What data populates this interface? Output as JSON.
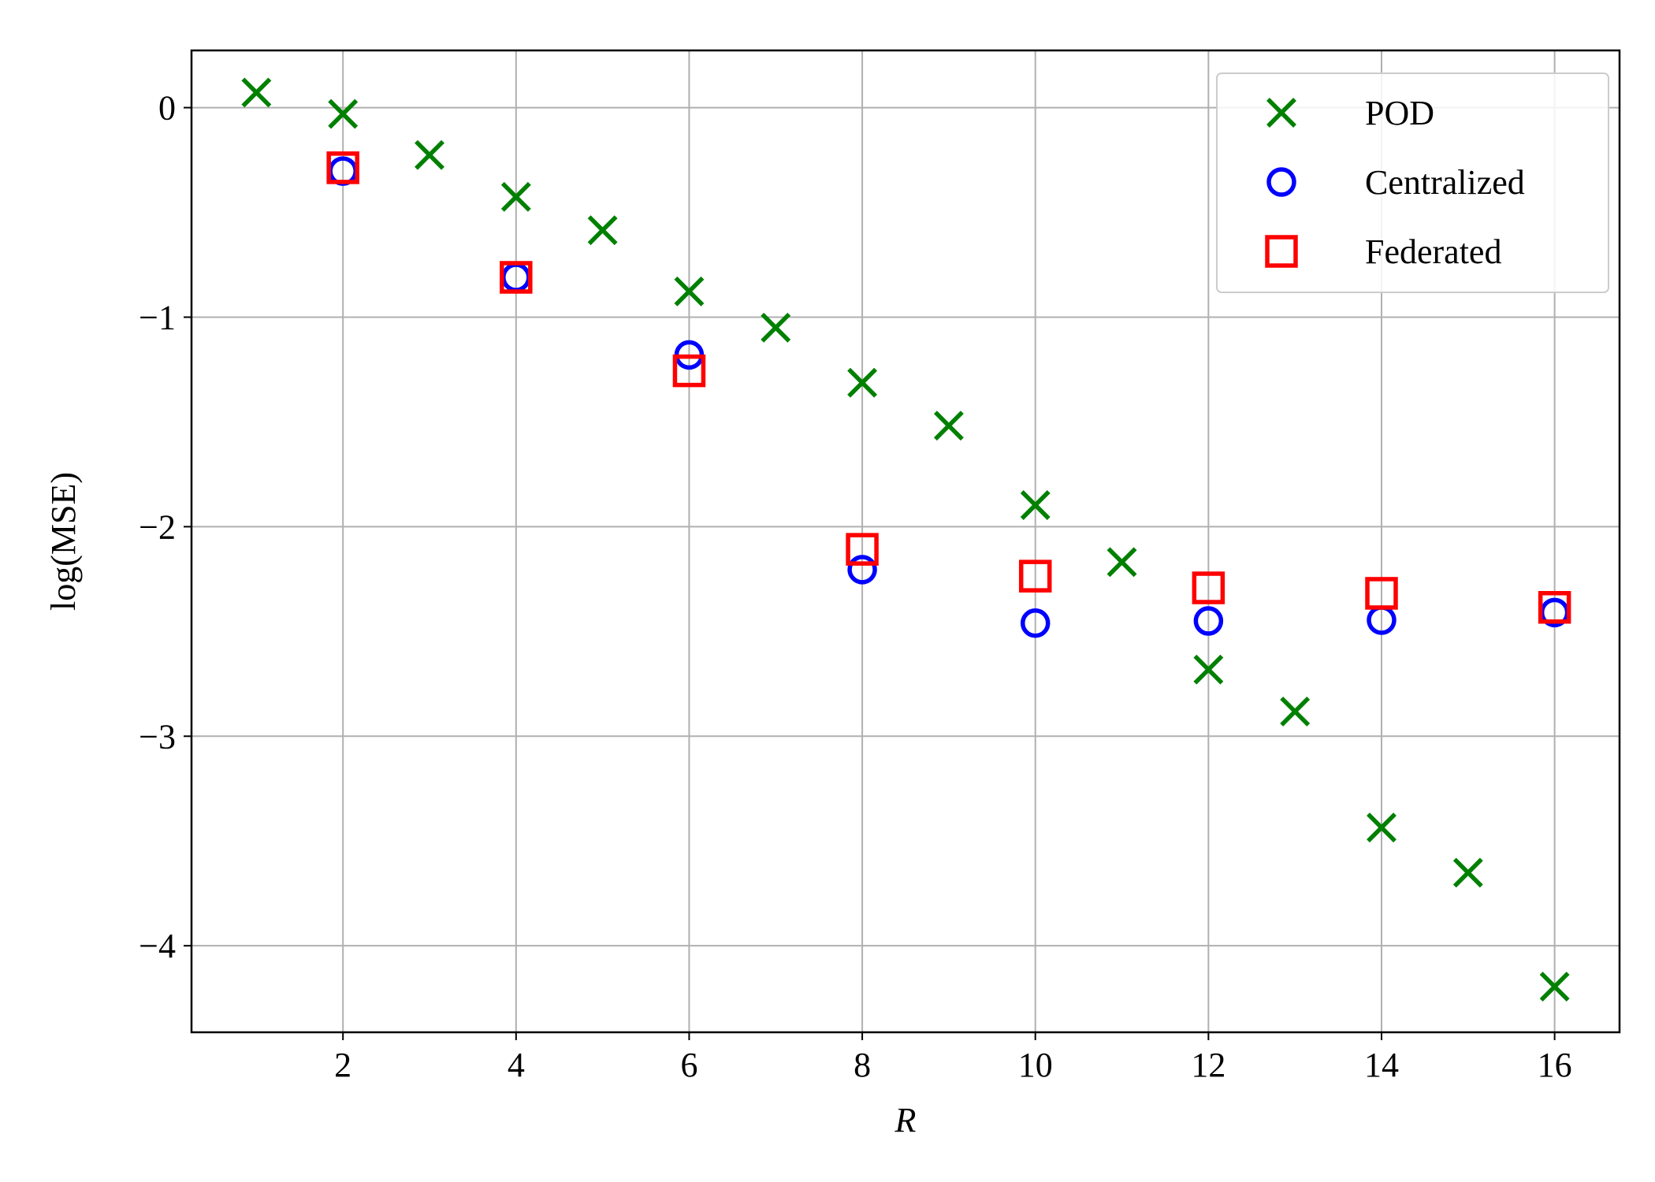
{
  "chart_data": {
    "type": "scatter",
    "x_label": "R",
    "y_label": "log(MSE)",
    "xlim": [
      0.25,
      16.75
    ],
    "ylim": [
      -4.413,
      0.273
    ],
    "xticks": [
      2,
      4,
      6,
      8,
      10,
      12,
      14,
      16
    ],
    "yticks": [
      {
        "value": -4,
        "label": "−4"
      },
      {
        "value": -3,
        "label": "−3"
      },
      {
        "value": -2,
        "label": "−2"
      },
      {
        "value": -1,
        "label": "−1"
      },
      0
    ],
    "grid": true,
    "legend": "upper right",
    "series": [
      {
        "name": "POD",
        "color": "#008000",
        "marker": "x",
        "x": [
          1,
          2,
          3,
          4,
          5,
          6,
          7,
          8,
          9,
          10,
          11,
          12,
          13,
          14,
          15,
          16
        ],
        "values": [
          0.072,
          -0.03,
          -0.226,
          -0.426,
          -0.585,
          -0.877,
          -1.05,
          -1.313,
          -1.518,
          -1.897,
          -2.169,
          -2.682,
          -2.882,
          -3.436,
          -3.651,
          -4.195
        ]
      },
      {
        "name": "Centralized",
        "color": "#0000ff",
        "marker": "o",
        "x": [
          2,
          4,
          6,
          8,
          10,
          12,
          14,
          16
        ],
        "values": [
          -0.303,
          -0.81,
          -1.18,
          -2.205,
          -2.46,
          -2.45,
          -2.446,
          -2.41
        ]
      },
      {
        "name": "Federated",
        "color": "#ff0000",
        "marker": "s",
        "x": [
          2,
          4,
          6,
          8,
          10,
          12,
          14,
          16
        ],
        "values": [
          -0.287,
          -0.81,
          -1.256,
          -2.108,
          -2.236,
          -2.292,
          -2.318,
          -2.385
        ]
      }
    ]
  }
}
